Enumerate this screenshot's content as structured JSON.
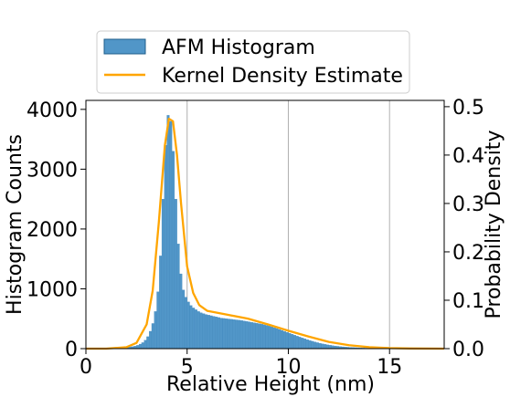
{
  "chart_data": {
    "type": "bar",
    "xlabel": "Relative Height (nm)",
    "ylabel_left": "Histogram Counts",
    "ylabel_right": "Probability Density",
    "xlim": [
      0,
      17.7
    ],
    "ylim_left": [
      0,
      4150
    ],
    "ylim_right": [
      0,
      0.513
    ],
    "x_ticks": [
      0,
      5,
      10,
      15
    ],
    "y_ticks_left": [
      0,
      1000,
      2000,
      3000,
      4000
    ],
    "y_ticks_right": [
      0.0,
      0.1,
      0.2,
      0.3,
      0.4,
      0.5
    ],
    "grid": "vertical lines at x ticks",
    "legend_position": "top, above plot",
    "series": [
      {
        "name": "AFM Histogram",
        "kind": "histogram",
        "color": "#1f77b4",
        "bin_width": 0.125,
        "bin_start": 1.0,
        "values": [
          2,
          3,
          4,
          6,
          8,
          10,
          13,
          16,
          20,
          26,
          33,
          42,
          55,
          75,
          100,
          140,
          200,
          290,
          420,
          620,
          950,
          1550,
          2500,
          3400,
          3900,
          3800,
          3300,
          2500,
          1750,
          1250,
          980,
          860,
          780,
          720,
          680,
          650,
          620,
          600,
          585,
          570,
          560,
          550,
          540,
          530,
          520,
          510,
          505,
          500,
          495,
          490,
          485,
          480,
          475,
          470,
          462,
          455,
          448,
          440,
          432,
          424,
          416,
          408,
          398,
          388,
          376,
          364,
          350,
          336,
          320,
          304,
          288,
          272,
          256,
          240,
          224,
          208,
          193,
          178,
          164,
          150,
          136,
          123,
          111,
          100,
          90,
          80,
          71,
          63,
          56,
          50,
          44,
          39,
          34,
          30,
          26,
          23,
          20,
          18,
          16,
          14,
          12,
          10,
          9,
          8,
          7,
          6,
          5,
          4,
          3,
          3,
          2,
          2
        ]
      },
      {
        "name": "Kernel Density Estimate",
        "kind": "line",
        "color": "#ffa500",
        "x": [
          0,
          1,
          2,
          2.5,
          3,
          3.3,
          3.6,
          3.9,
          4.1,
          4.3,
          4.5,
          4.7,
          5.0,
          5.3,
          5.6,
          6.0,
          7.0,
          8.0,
          9.0,
          10.0,
          11.0,
          12.0,
          13.0,
          14.0,
          15.0,
          16.0,
          17.7
        ],
        "y": [
          0.0,
          0.0,
          0.003,
          0.012,
          0.05,
          0.12,
          0.26,
          0.42,
          0.475,
          0.47,
          0.4,
          0.3,
          0.17,
          0.115,
          0.09,
          0.078,
          0.07,
          0.062,
          0.05,
          0.037,
          0.025,
          0.014,
          0.007,
          0.003,
          0.0012,
          0.0004,
          0.0
        ]
      }
    ]
  }
}
